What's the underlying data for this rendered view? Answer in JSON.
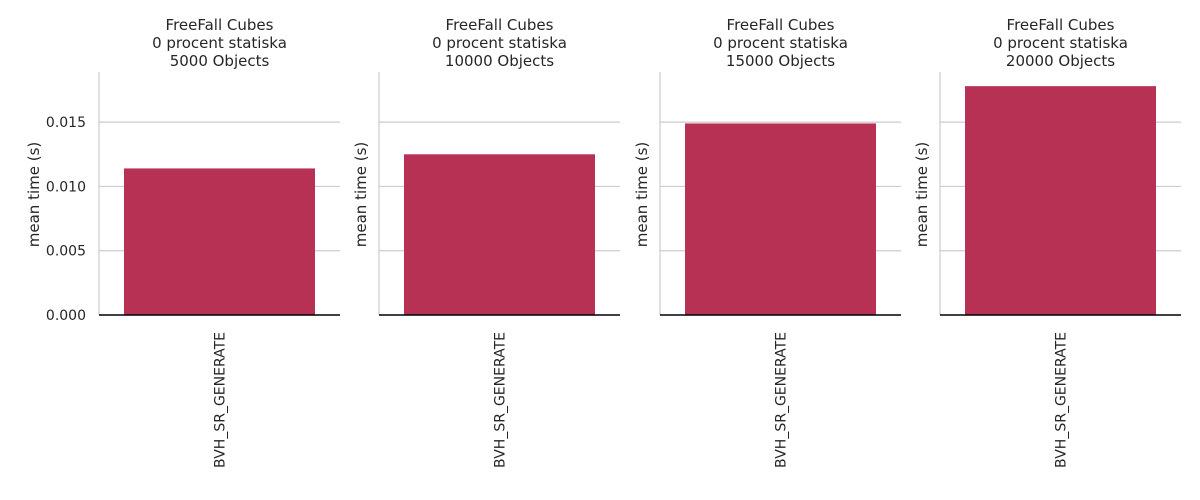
{
  "chart_data": [
    {
      "type": "bar",
      "title_lines": [
        "FreeFall Cubes",
        "0 procent statiska",
        "5000 Objects"
      ],
      "categories": [
        "BVH_SR_GENERATE"
      ],
      "values": [
        0.0114
      ],
      "ylabel": "mean time (s)",
      "xlabel": "",
      "ylim": [
        0,
        0.0189
      ],
      "yticks": [
        "0.000",
        "0.005",
        "0.010",
        "0.015"
      ],
      "ytick_values": [
        0,
        0.005,
        0.01,
        0.015
      ],
      "show_ytick_labels": true,
      "grid": "y",
      "bar_color": "#b73155"
    },
    {
      "type": "bar",
      "title_lines": [
        "FreeFall Cubes",
        "0 procent statiska",
        "10000 Objects"
      ],
      "categories": [
        "BVH_SR_GENERATE"
      ],
      "values": [
        0.0125
      ],
      "ylabel": "mean time (s)",
      "xlabel": "",
      "ylim": [
        0,
        0.0189
      ],
      "yticks": [
        "0.000",
        "0.005",
        "0.010",
        "0.015"
      ],
      "ytick_values": [
        0,
        0.005,
        0.01,
        0.015
      ],
      "show_ytick_labels": false,
      "grid": "y",
      "bar_color": "#b73155"
    },
    {
      "type": "bar",
      "title_lines": [
        "FreeFall Cubes",
        "0 procent statiska",
        "15000 Objects"
      ],
      "categories": [
        "BVH_SR_GENERATE"
      ],
      "values": [
        0.0149
      ],
      "ylabel": "mean time (s)",
      "xlabel": "",
      "ylim": [
        0,
        0.0189
      ],
      "yticks": [
        "0.000",
        "0.005",
        "0.010",
        "0.015"
      ],
      "ytick_values": [
        0,
        0.005,
        0.01,
        0.015
      ],
      "show_ytick_labels": false,
      "grid": "y",
      "bar_color": "#b73155"
    },
    {
      "type": "bar",
      "title_lines": [
        "FreeFall Cubes",
        "0 procent statiska",
        "20000 Objects"
      ],
      "categories": [
        "BVH_SR_GENERATE"
      ],
      "values": [
        0.0178
      ],
      "ylabel": "mean time (s)",
      "xlabel": "",
      "ylim": [
        0,
        0.0189
      ],
      "yticks": [
        "0.000",
        "0.005",
        "0.010",
        "0.015"
      ],
      "ytick_values": [
        0,
        0.005,
        0.01,
        0.015
      ],
      "show_ytick_labels": false,
      "grid": "y",
      "bar_color": "#b73155"
    }
  ]
}
